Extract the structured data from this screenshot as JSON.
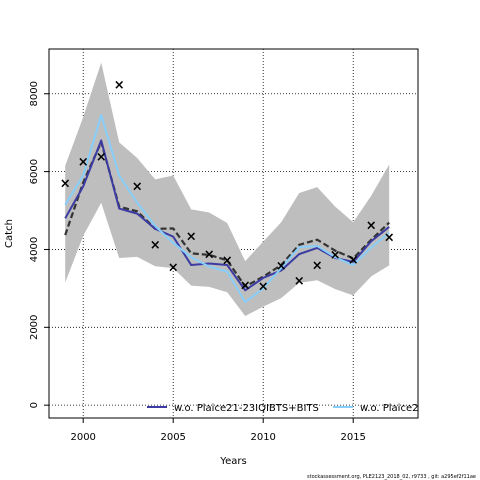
{
  "chart_data": {
    "type": "line",
    "xlabel": "Years",
    "ylabel": "Catch",
    "xlim": [
      1998.1,
      2018.6
    ],
    "ylim": [
      -330,
      9150
    ],
    "x_ticks": [
      2000,
      2005,
      2010,
      2015
    ],
    "x_tick_labels": [
      "2000",
      "2005",
      "2010",
      "2015"
    ],
    "y_ticks": [
      0,
      2000,
      4000,
      6000,
      8000
    ],
    "y_tick_labels": [
      "0",
      "2000",
      "4000",
      "6000",
      "8000"
    ],
    "grid": true,
    "legend_placement": "bottom",
    "x": [
      1999,
      2000,
      2001,
      2002,
      2003,
      2004,
      2005,
      2006,
      2007,
      2008,
      2009,
      2010,
      2011,
      2012,
      2013,
      2014,
      2015,
      2016,
      2017
    ],
    "band": {
      "upper": [
        6150,
        7400,
        8800,
        6750,
        6350,
        5800,
        5900,
        5030,
        4950,
        4680,
        3700,
        4200,
        4700,
        5450,
        5600,
        5100,
        4700,
        5380,
        6180
      ],
      "lower": [
        3150,
        4350,
        5200,
        3780,
        3810,
        3570,
        3520,
        3070,
        3040,
        2900,
        2290,
        2530,
        2750,
        3140,
        3210,
        2980,
        2820,
        3310,
        3590
      ],
      "color": "#bebebe"
    },
    "observations": {
      "marker": "×",
      "x": [
        1999,
        2000,
        2001,
        2002,
        2003,
        2004,
        2005,
        2006,
        2007,
        2008,
        2009,
        2010,
        2011,
        2012,
        2013,
        2014,
        2015,
        2016,
        2017
      ],
      "y": [
        5700,
        6250,
        6370,
        8220,
        5620,
        4120,
        3540,
        4330,
        3870,
        3720,
        3080,
        3050,
        3580,
        3190,
        3590,
        3860,
        3730,
        4610,
        4310
      ]
    },
    "series": [
      {
        "line_style": "dashed",
        "color": "#333333",
        "values": [
          4370,
          5720,
          6760,
          5100,
          4980,
          4530,
          4540,
          3900,
          3860,
          3720,
          3050,
          3300,
          3600,
          4120,
          4250,
          3970,
          3770,
          4250,
          4690
        ]
      },
      {
        "name": "w.o. Plaice21-23IQIBTS+BITS",
        "line_style": "solid",
        "color": "#3b3ba3",
        "values": [
          4800,
          5620,
          6800,
          5050,
          4920,
          4530,
          4330,
          3600,
          3640,
          3600,
          2950,
          3270,
          3460,
          3880,
          4040,
          3780,
          3680,
          4210,
          4580
        ]
      },
      {
        "name": "w.o. Plaice2",
        "line_style": "solid",
        "color": "#87cefa",
        "values": [
          5150,
          5900,
          7450,
          5900,
          5200,
          4600,
          4170,
          3800,
          3560,
          3430,
          2650,
          3000,
          3520,
          4060,
          4090,
          3800,
          3600,
          4050,
          4430
        ]
      }
    ]
  },
  "footer": "stockassessment.org, PLE2123_2018_02, r9733 , git: a295ef2f11ae"
}
